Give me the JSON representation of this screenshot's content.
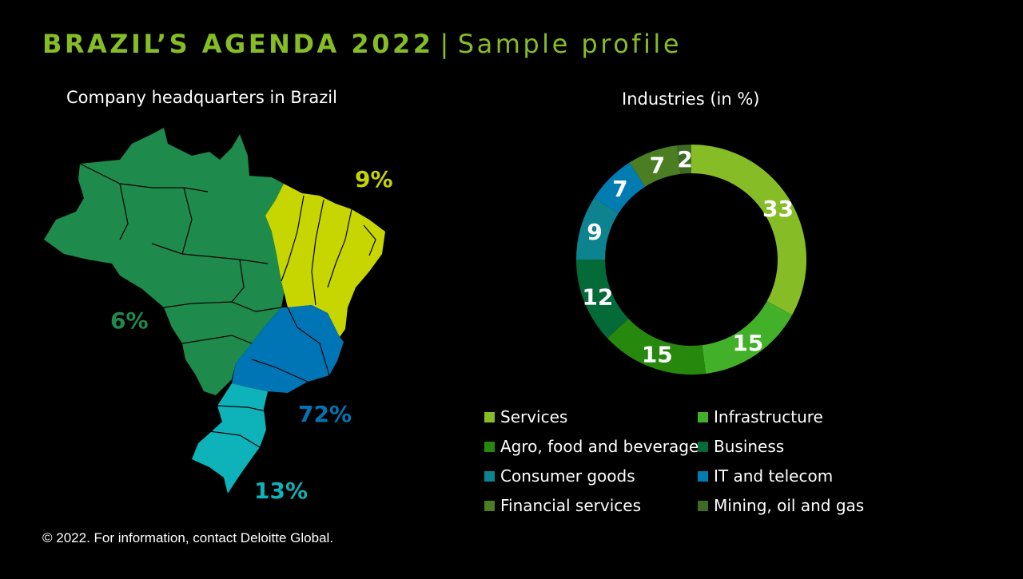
{
  "title": {
    "main": "BRAZIL’S AGENDA 2022",
    "separator": "|",
    "subtitle": "Sample profile"
  },
  "map": {
    "heading": "Company headquarters in Brazil",
    "regions": [
      {
        "name": "north-northeast-west",
        "label": "6%",
        "color": "#1e8a4b"
      },
      {
        "name": "northeast",
        "label": "9%",
        "color": "#c7d500"
      },
      {
        "name": "southeast",
        "label": "72%",
        "color": "#0075b5"
      },
      {
        "name": "south",
        "label": "13%",
        "color": "#0eb3b9"
      }
    ]
  },
  "chart_data": {
    "type": "pie",
    "title": "Industries (in %)",
    "donut": true,
    "categories": [
      "Services",
      "Infrastructure",
      "Agro, food and beverage",
      "Business",
      "Consumer goods",
      "IT and telecom",
      "Financial services",
      "Mining, oil and gas"
    ],
    "values": [
      33,
      15,
      15,
      12,
      9,
      7,
      7,
      2
    ],
    "colors": [
      "#86bc25",
      "#43b02a",
      "#26890d",
      "#046a38",
      "#0d8390",
      "#007cb0",
      "#4b7d23",
      "#3f6a23"
    ],
    "legend_position": "bottom"
  },
  "footer": "© 2022. For information, contact Deloitte Global."
}
